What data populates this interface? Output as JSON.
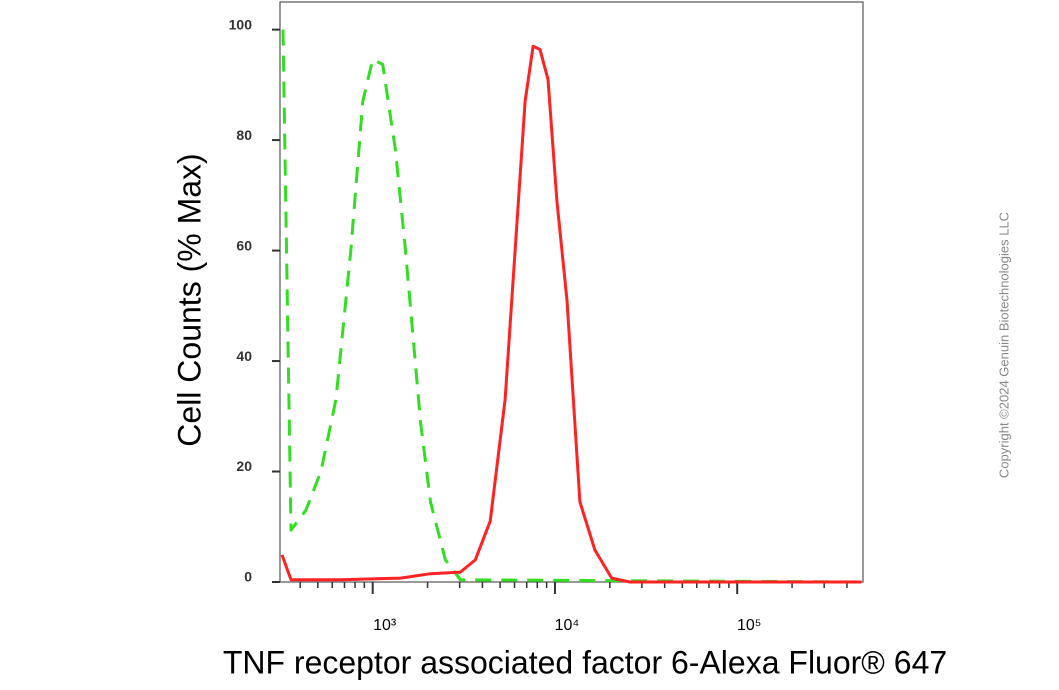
{
  "chart_data": {
    "type": "line",
    "x_label": "TNF receptor associated factor 6-Alexa Fluor® 647",
    "y_label": "Cell Counts (% Max)",
    "annotation": "Copyright ©2024 Genuin Biotechnologies LLC",
    "xscale": "log",
    "xlim": [
      310,
      490000
    ],
    "ylim": [
      0,
      105
    ],
    "xticks": [
      {
        "value": 1000,
        "label": "10³"
      },
      {
        "value": 10000,
        "label": "10⁴"
      },
      {
        "value": 100000,
        "label": "10⁵"
      }
    ],
    "xminorticks": [
      400,
      500,
      600,
      700,
      800,
      900,
      2000,
      3000,
      4000,
      5000,
      6000,
      7000,
      8000,
      9000,
      20000,
      30000,
      40000,
      50000,
      60000,
      70000,
      80000,
      90000,
      200000,
      300000,
      400000
    ],
    "yticks": [
      0,
      20,
      40,
      60,
      80,
      100
    ],
    "grid": false,
    "series": [
      {
        "color": "#33dd22",
        "dash": true,
        "x": [
          322,
          356,
          430,
          520,
          628,
          758,
          882,
          1000,
          1134,
          1336,
          1514,
          1829,
          2075,
          2506,
          3027,
          480000
        ],
        "values": [
          100,
          9.4,
          13,
          20,
          33,
          60,
          87,
          94.6,
          93.7,
          78,
          60,
          29,
          14.5,
          4,
          0.4,
          0
        ]
      },
      {
        "color": "#ff2222",
        "dash": false,
        "x": [
          318,
          356,
          668,
          1422,
          2075,
          3027,
          3654,
          4413,
          5329,
          6043,
          6855,
          7586,
          8280,
          9156,
          10250,
          11640,
          13710,
          16560,
          20480,
          25700,
          480000
        ],
        "values": [
          4.9,
          0.4,
          0.4,
          0.7,
          1.5,
          1.8,
          4,
          11,
          33,
          60,
          87,
          97,
          96.4,
          91,
          69,
          51,
          14.5,
          5.8,
          0.7,
          0,
          0
        ]
      }
    ]
  }
}
